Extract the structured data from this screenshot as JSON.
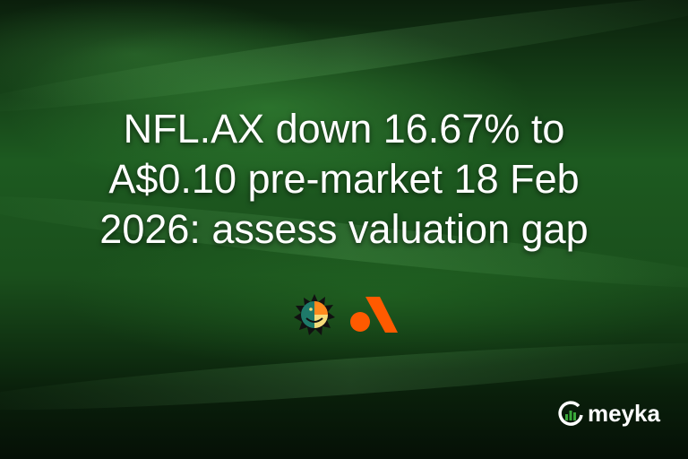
{
  "headline": {
    "line1": "NFL.AX down 16.67% to",
    "line2": "A$0.10 pre-market 18 Feb",
    "line3": "2026: assess valuation gap"
  },
  "brand": {
    "name": "meyka",
    "accent": "#3aa83a"
  },
  "logos": [
    "sun-face-logo-icon",
    "orange-a-logo-icon"
  ],
  "colors": {
    "orange": "#ff5a00",
    "teal": "#1e7a6a",
    "yellow": "#f4dc7a"
  }
}
